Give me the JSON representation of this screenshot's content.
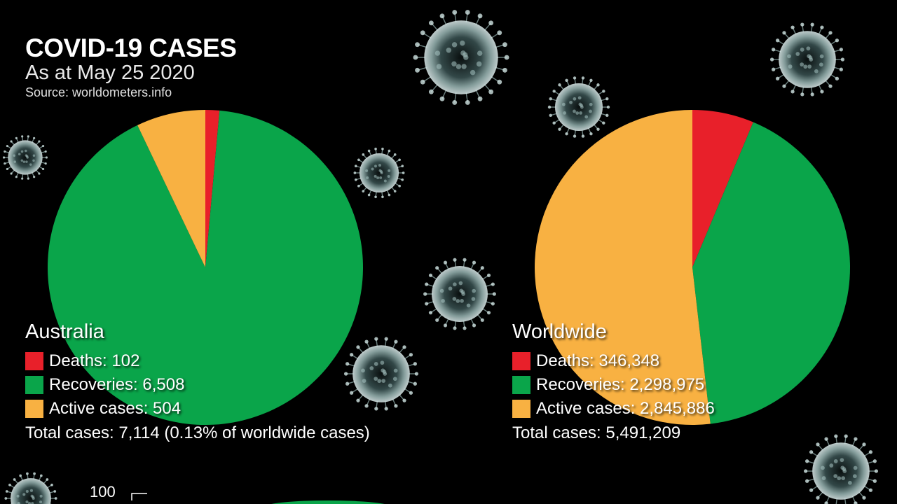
{
  "header": {
    "title": "COVID-19 CASES",
    "subtitle": "As at May 25 2020",
    "source": "Source: worldometers.info"
  },
  "colors": {
    "deaths": "#e8202a",
    "recoveries": "#0aa54a",
    "active": "#f8b142",
    "background": "#000000",
    "virus": "#9ab7b5"
  },
  "icons": [
    "coronavirus-icon"
  ],
  "chart_data": [
    {
      "type": "pie",
      "title": "Australia",
      "labels": [
        "Deaths",
        "Recoveries",
        "Active cases"
      ],
      "values": [
        102,
        6508,
        504
      ],
      "legend": [
        "Deaths: 102",
        "Recoveries: 6,508",
        "Active cases: 504"
      ],
      "total_label": "Total cases: 7,114 (0.13% of worldwide cases)",
      "total": 7114
    },
    {
      "type": "pie",
      "title": "Worldwide",
      "labels": [
        "Deaths",
        "Recoveries",
        "Active cases"
      ],
      "values": [
        346348,
        2298975,
        2845886
      ],
      "legend": [
        "Deaths: 346,348",
        "Recoveries: 2,298,975",
        "Active cases: 2,845,886"
      ],
      "total_label": "Total cases: 5,491,209",
      "total": 5491209
    },
    {
      "type": "bar",
      "ytick_labels": [
        "100"
      ]
    }
  ]
}
